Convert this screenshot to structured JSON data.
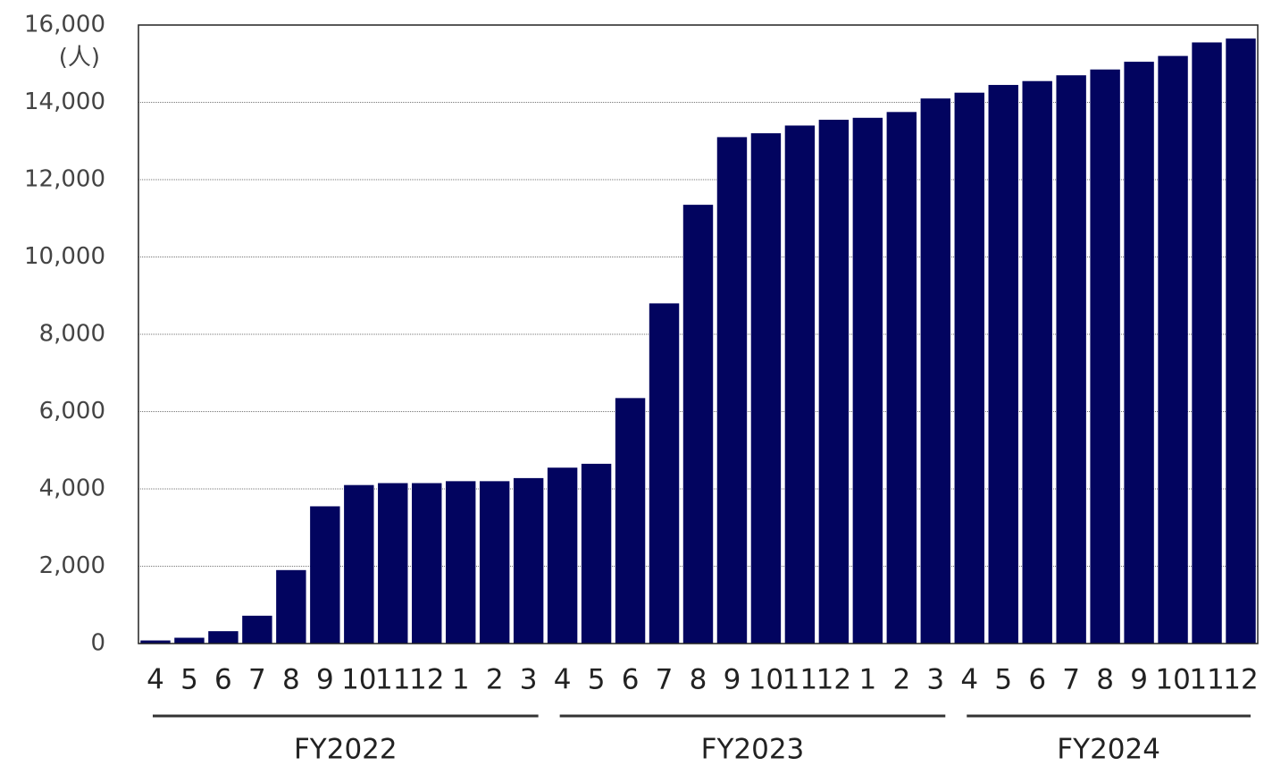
{
  "chart_data": {
    "type": "bar",
    "color": "#02045f",
    "ylabel": "(人)",
    "ylim": [
      0,
      16000
    ],
    "yticks": [
      0,
      {
        "value": 2000,
        "label": "2,000"
      },
      {
        "value": 4000,
        "label": "4,000"
      },
      {
        "value": 6000,
        "label": "6,000"
      },
      {
        "value": 8000,
        "label": "8,000"
      },
      {
        "value": 10000,
        "label": "10,000"
      },
      {
        "value": 12000,
        "label": "12,000"
      },
      {
        "value": 14000,
        "label": "14,000"
      },
      {
        "value": 16000,
        "label": "16,000"
      }
    ],
    "grid": true,
    "groups": [
      {
        "label": "FY2022",
        "categories": [
          "4",
          "5",
          "6",
          "7",
          "8",
          "9",
          "10",
          "11",
          "12",
          "1",
          "2",
          "3"
        ],
        "values": [
          80,
          150,
          320,
          720,
          1900,
          3550,
          4100,
          4150,
          4150,
          4200,
          4200,
          4280
        ]
      },
      {
        "label": "FY2023",
        "categories": [
          "4",
          "5",
          "6",
          "7",
          "8",
          "9",
          "10",
          "11",
          "12",
          "1",
          "2",
          "3"
        ],
        "values": [
          4550,
          4650,
          6350,
          8800,
          11350,
          13100,
          13200,
          13400,
          13550,
          13600,
          13750,
          14100
        ]
      },
      {
        "label": "FY2024",
        "categories": [
          "4",
          "5",
          "6",
          "7",
          "8",
          "9",
          "10",
          "11",
          "12"
        ],
        "values": [
          14250,
          14450,
          14550,
          14700,
          14850,
          15050,
          15200,
          15550,
          15650
        ]
      }
    ]
  }
}
